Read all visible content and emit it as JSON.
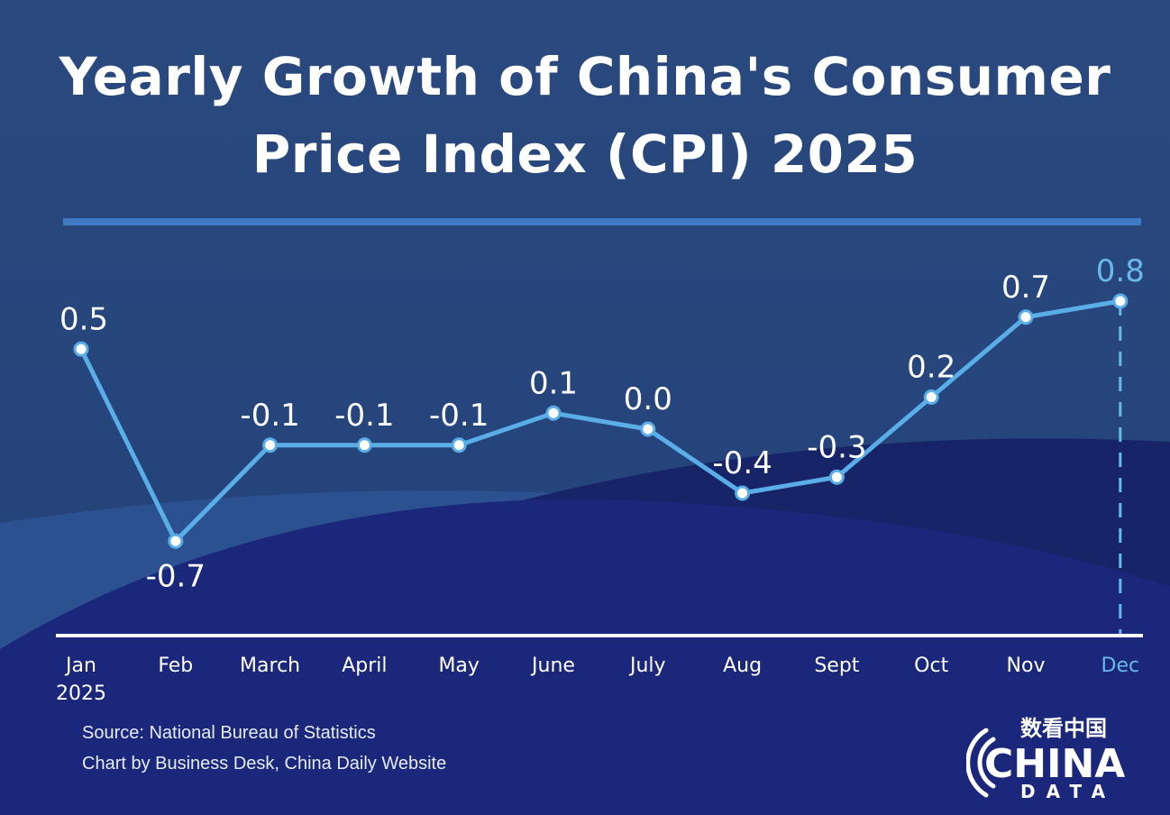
{
  "title_line1": "Yearly Growth of China's Consumer",
  "title_line2": "Price Index (CPI) 2025",
  "source": "Source: National Bureau of Statistics",
  "credit": "Chart by Business Desk, China Daily Website",
  "logo": {
    "cn": "数看中国",
    "line1": "CHINA",
    "line2": "DATA"
  },
  "colors": {
    "line": "#5aaee8",
    "highlight": "#6ab8ea",
    "text": "#ffffff",
    "background": "#27467a"
  },
  "chart_data": {
    "type": "line",
    "categories": [
      "Jan",
      "Feb",
      "March",
      "April",
      "May",
      "June",
      "July",
      "Aug",
      "Sept",
      "Oct",
      "Nov",
      "Dec"
    ],
    "category_sublabel": {
      "Jan": "2025"
    },
    "values": [
      0.5,
      -0.7,
      -0.1,
      -0.1,
      -0.1,
      0.1,
      0.0,
      -0.4,
      -0.3,
      0.2,
      0.7,
      0.8
    ],
    "labels": [
      "0.5",
      "-0.7",
      "-0.1",
      "-0.1",
      "-0.1",
      "0.1",
      "0.0",
      "-0.4",
      "-0.3",
      "0.2",
      "0.7",
      "0.8"
    ],
    "highlight": "Dec",
    "grid": false,
    "ylabel": "",
    "xlabel": ""
  }
}
